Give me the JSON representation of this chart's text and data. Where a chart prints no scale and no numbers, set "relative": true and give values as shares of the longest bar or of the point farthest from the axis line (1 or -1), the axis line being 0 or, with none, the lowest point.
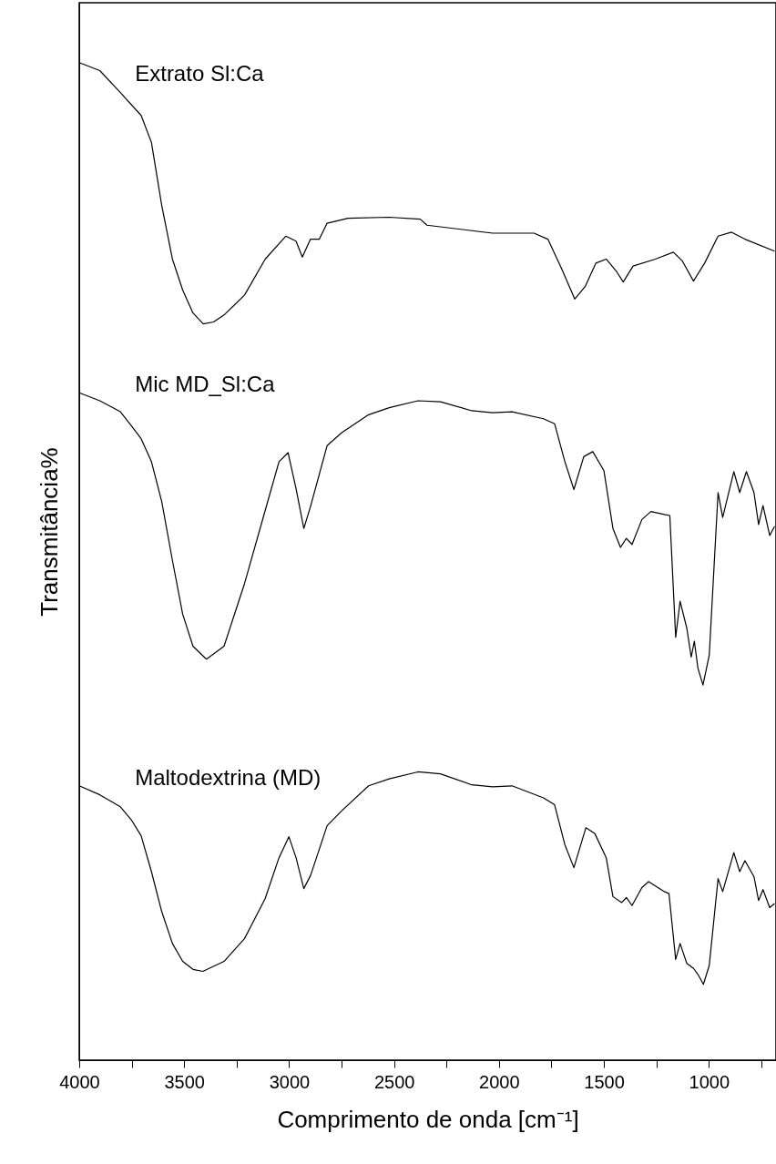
{
  "chart_data": {
    "type": "line",
    "relative": true,
    "xlabel": "Comprimento de onda [cm⁻¹]",
    "ylabel": "Transmitância%",
    "xlim": [
      4000,
      680
    ],
    "xticks": [
      4000,
      {
        "value": 3750,
        "label": null
      },
      3500,
      {
        "value": 3250,
        "label": null
      },
      3000,
      {
        "value": 2750,
        "label": null
      },
      2500,
      {
        "value": 2250,
        "label": null
      },
      2000,
      {
        "value": 1750,
        "label": null
      },
      1500,
      {
        "value": 1250,
        "label": null
      },
      1000,
      {
        "value": 750,
        "label": null
      }
    ],
    "grid": false,
    "marker": "none",
    "line_style": "solid",
    "series": [
      {
        "name": "Extrato Sl:Ca",
        "color": "#000000",
        "x": [
          4000,
          3902,
          3804,
          3705,
          3656,
          3607,
          3556,
          3507,
          3458,
          3409,
          3360,
          3310,
          3212,
          3114,
          3016,
          2967,
          2937,
          2898,
          2856,
          2819,
          2719,
          2523,
          2375,
          2343,
          2030,
          1833,
          1767,
          1703,
          1639,
          1588,
          1538,
          1489,
          1438,
          1408,
          1361,
          1255,
          1169,
          1126,
          1073,
          1020,
          956,
          892,
          828,
          687
        ],
        "values": [
          1.0,
          0.992,
          0.97,
          0.947,
          0.92,
          0.857,
          0.803,
          0.772,
          0.749,
          0.738,
          0.74,
          0.747,
          0.767,
          0.803,
          0.826,
          0.821,
          0.805,
          0.823,
          0.823,
          0.839,
          0.844,
          0.845,
          0.843,
          0.837,
          0.829,
          0.829,
          0.823,
          0.794,
          0.763,
          0.776,
          0.799,
          0.803,
          0.79,
          0.78,
          0.796,
          0.803,
          0.81,
          0.801,
          0.781,
          0.799,
          0.826,
          0.83,
          0.823,
          0.811
        ]
      },
      {
        "name": "Mic MD_Sl:Ca",
        "color": "#000000",
        "x": [
          4000,
          3902,
          3804,
          3752,
          3705,
          3656,
          3607,
          3556,
          3507,
          3458,
          3394,
          3310,
          3212,
          3114,
          3048,
          3005,
          2967,
          2930,
          2898,
          2819,
          2749,
          2621,
          2523,
          2386,
          2279,
          2130,
          2030,
          1938,
          1788,
          1735,
          1686,
          1643,
          1596,
          1553,
          1500,
          1457,
          1421,
          1393,
          1366,
          1319,
          1276,
          1212,
          1186,
          1158,
          1137,
          1105,
          1084,
          1069,
          1052,
          1028,
          998,
          956,
          934,
          881,
          853,
          821,
          785,
          763,
          742,
          710,
          687
        ],
        "values": [
          0.669,
          0.661,
          0.65,
          0.636,
          0.623,
          0.6,
          0.56,
          0.501,
          0.447,
          0.415,
          0.402,
          0.415,
          0.478,
          0.551,
          0.6,
          0.609,
          0.573,
          0.533,
          0.555,
          0.616,
          0.629,
          0.647,
          0.654,
          0.661,
          0.66,
          0.651,
          0.649,
          0.65,
          0.643,
          0.638,
          0.6,
          0.572,
          0.605,
          0.61,
          0.591,
          0.533,
          0.514,
          0.523,
          0.517,
          0.542,
          0.55,
          0.547,
          0.546,
          0.424,
          0.46,
          0.433,
          0.404,
          0.42,
          0.393,
          0.376,
          0.406,
          0.569,
          0.544,
          0.59,
          0.569,
          0.59,
          0.569,
          0.537,
          0.556,
          0.526,
          0.535
        ]
      },
      {
        "name": "Maltodextrina (MD)",
        "color": "#000000",
        "x": [
          4000,
          3902,
          3804,
          3752,
          3705,
          3656,
          3607,
          3556,
          3507,
          3458,
          3411,
          3310,
          3212,
          3114,
          3048,
          3001,
          2967,
          2930,
          2898,
          2819,
          2749,
          2621,
          2523,
          2386,
          2279,
          2130,
          2030,
          1938,
          1788,
          1735,
          1686,
          1643,
          1586,
          1543,
          1489,
          1457,
          1415,
          1393,
          1366,
          1319,
          1287,
          1212,
          1190,
          1158,
          1137,
          1105,
          1073,
          1052,
          1026,
          998,
          956,
          934,
          881,
          853,
          828,
          785,
          763,
          742,
          710,
          687
        ],
        "values": [
          0.275,
          0.266,
          0.254,
          0.241,
          0.225,
          0.189,
          0.149,
          0.117,
          0.099,
          0.091,
          0.089,
          0.099,
          0.122,
          0.162,
          0.203,
          0.224,
          0.203,
          0.172,
          0.185,
          0.235,
          0.25,
          0.275,
          0.282,
          0.289,
          0.287,
          0.276,
          0.274,
          0.275,
          0.263,
          0.256,
          0.216,
          0.193,
          0.233,
          0.227,
          0.203,
          0.164,
          0.158,
          0.163,
          0.155,
          0.173,
          0.179,
          0.169,
          0.167,
          0.101,
          0.117,
          0.097,
          0.092,
          0.086,
          0.076,
          0.095,
          0.182,
          0.169,
          0.208,
          0.189,
          0.2,
          0.184,
          0.16,
          0.171,
          0.153,
          0.157
        ]
      }
    ]
  }
}
